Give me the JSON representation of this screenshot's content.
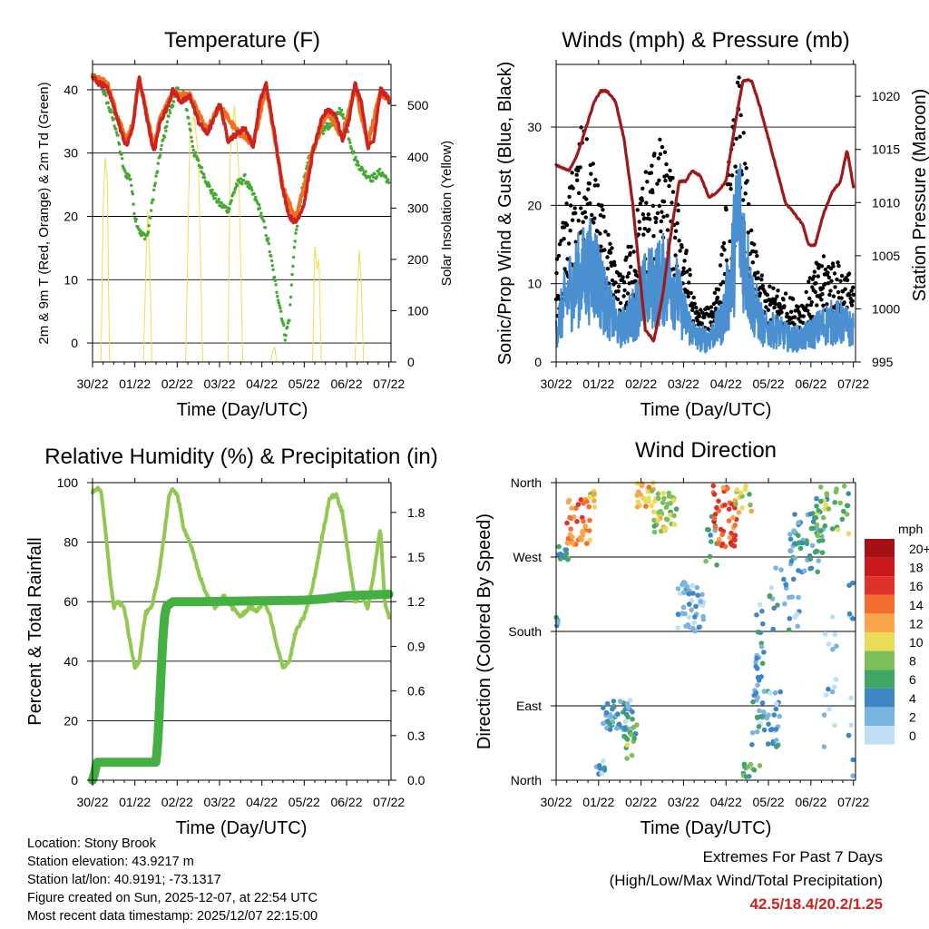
{
  "meta": {
    "location": "Location: Stony Brook",
    "elevation": "Station elevation: 43.9217 m",
    "latlon": "Station lat/lon: 40.9191; -73.1317",
    "created": "Figure created on Sun, 2025-12-07, at 22:54 UTC",
    "timestamp": "Most recent data timestamp: 2025/12/07 22:15:00"
  },
  "extremes": {
    "title": "Extremes For Past 7 Days",
    "subtitle": "(High/Low/Max Wind/Total Precipitation)",
    "values": "42.5/18.4/20.2/1.25"
  },
  "colors": {
    "temp2m": "#cc2222",
    "temp9m": "#f07020",
    "dewpoint": "#44aa33",
    "solar": "#f2dc50",
    "wind_sonic": "#4a90d0",
    "gust": "#000000",
    "pressure": "#a01818",
    "rh": "#90c850",
    "precip": "#44b044"
  },
  "chart_data": [
    {
      "type": "line",
      "title": "Temperature (F)",
      "xlabel": "Time (Day/UTC)",
      "ylabel": "2m & 9m T (Red, Orange) & 2m Td (Green)",
      "ylabel_right": "Solar Insolation (Yellow)",
      "x_ticks": [
        "30/22",
        "01/22",
        "02/22",
        "03/22",
        "04/22",
        "05/22",
        "06/22",
        "07/22"
      ],
      "xlim": [
        0,
        7.05
      ],
      "ylim": [
        -3,
        44
      ],
      "y_ticks": [
        "0",
        "10",
        "20",
        "30",
        "40"
      ],
      "ylim_right": [
        0,
        580
      ],
      "y_ticks_right": [
        "0",
        "100",
        "200",
        "300",
        "400",
        "500"
      ],
      "series": [
        {
          "name": "2m T",
          "x": [
            0,
            0.15,
            0.35,
            0.6,
            0.8,
            0.95,
            1.1,
            1.3,
            1.45,
            1.6,
            1.75,
            1.9,
            2.1,
            2.3,
            2.5,
            2.7,
            2.85,
            3.0,
            3.2,
            3.4,
            3.6,
            3.8,
            3.95,
            4.1,
            4.3,
            4.5,
            4.65,
            4.8,
            5.0,
            5.2,
            5.4,
            5.55,
            5.75,
            5.9,
            6.05,
            6.2,
            6.35,
            6.5,
            6.65,
            6.8,
            6.95,
            7.0
          ],
          "values": [
            42,
            41,
            40.5,
            35,
            31,
            34,
            42,
            35,
            30,
            35,
            37,
            40,
            38,
            39,
            35,
            33,
            35,
            38,
            32,
            33,
            34,
            31,
            38,
            41,
            33,
            24,
            20,
            19,
            22,
            30,
            35,
            37,
            36,
            32,
            35,
            41,
            38,
            31,
            32,
            40,
            39,
            38
          ]
        },
        {
          "name": "9m T",
          "x": [
            0,
            0.35,
            0.6,
            0.8,
            0.95,
            1.1,
            1.3,
            1.45,
            1.6,
            1.9,
            2.3,
            2.7,
            3.0,
            3.4,
            3.8,
            4.1,
            4.5,
            4.8,
            5.2,
            5.55,
            5.9,
            6.2,
            6.5,
            6.8,
            7.0
          ],
          "values": [
            42,
            41,
            35.5,
            32,
            34.5,
            42,
            35.5,
            31,
            35.5,
            39.5,
            39,
            33.5,
            37.5,
            33.5,
            31.5,
            40.5,
            24.5,
            19.5,
            30.5,
            36.5,
            32.5,
            40.5,
            31.5,
            39.5,
            38.5
          ]
        },
        {
          "name": "2m Td",
          "x": [
            0,
            0.2,
            0.4,
            0.55,
            0.75,
            0.9,
            1.0,
            1.15,
            1.3,
            1.45,
            1.6,
            1.8,
            2.0,
            2.2,
            2.4,
            2.6,
            2.8,
            3.0,
            3.2,
            3.4,
            3.6,
            3.75,
            3.9,
            4.0,
            4.15,
            4.3,
            4.45,
            4.55,
            4.65,
            4.75,
            4.85,
            4.95,
            5.1,
            5.3,
            5.5,
            5.7,
            5.85,
            6.0,
            6.2,
            6.4,
            6.6,
            6.8,
            6.95,
            7.0
          ],
          "values": [
            42,
            41,
            37,
            34,
            27,
            26,
            20,
            17,
            17,
            24,
            30,
            36,
            40,
            38,
            30,
            27,
            24,
            22,
            21,
            25,
            26,
            24,
            22,
            20,
            16,
            10,
            5,
            1,
            4,
            14,
            20,
            24,
            29,
            32,
            34,
            35,
            37,
            34,
            29,
            27,
            26,
            27,
            26,
            25
          ]
        },
        {
          "name": "Solar",
          "x": [
            0.2,
            0.25,
            0.3,
            0.35,
            0.4,
            1.2,
            1.25,
            1.3,
            1.35,
            1.4,
            2.2,
            2.3,
            2.4,
            2.5,
            2.6,
            3.2,
            3.25,
            3.35,
            3.45,
            3.55,
            4.2,
            4.25,
            4.3,
            4.35,
            5.2,
            5.25,
            5.3,
            5.35,
            5.4,
            6.2,
            6.25,
            6.3,
            6.35,
            6.4,
            6.5
          ],
          "values": [
            0,
            300,
            400,
            350,
            0,
            0,
            150,
            300,
            200,
            0,
            0,
            450,
            480,
            400,
            0,
            0,
            400,
            500,
            380,
            0,
            0,
            20,
            30,
            0,
            0,
            230,
            180,
            200,
            0,
            0,
            120,
            220,
            150,
            0,
            0
          ]
        }
      ]
    },
    {
      "type": "line",
      "title": "Winds (mph) & Pressure (mb)",
      "xlabel": "Time (Day/UTC)",
      "ylabel": "Sonic/Prop Wind & Gust (Blue, Black)",
      "ylabel_right": "Station Pressure (Maroon)",
      "x_ticks": [
        "30/22",
        "01/22",
        "02/22",
        "03/22",
        "04/22",
        "05/22",
        "06/22",
        "07/22"
      ],
      "xlim": [
        0,
        7.05
      ],
      "ylim": [
        0,
        38
      ],
      "y_ticks": [
        "0",
        "10",
        "20",
        "30"
      ],
      "ylim_right": [
        995,
        1023
      ],
      "y_ticks_right": [
        "995",
        "1000",
        "1005",
        "1010",
        "1015",
        "1020"
      ],
      "series": [
        {
          "name": "Sonic/Prop Wind",
          "x": [
            0,
            0.3,
            0.6,
            0.9,
            1.2,
            1.5,
            1.8,
            2.1,
            2.4,
            2.7,
            3.0,
            3.3,
            3.6,
            3.9,
            4.1,
            4.3,
            4.6,
            4.9,
            5.2,
            5.5,
            5.8,
            6.1,
            6.4,
            6.7,
            7.0
          ],
          "values": [
            4,
            9,
            11,
            12,
            7,
            4,
            6,
            9,
            10,
            11,
            6,
            3,
            3,
            5,
            10,
            19,
            8,
            4,
            4,
            3,
            3,
            4,
            5,
            5,
            4
          ]
        },
        {
          "name": "Gust",
          "x": [
            0,
            0.3,
            0.6,
            0.9,
            1.2,
            1.5,
            1.8,
            2.1,
            2.4,
            2.7,
            3.0,
            3.3,
            3.6,
            3.9,
            4.1,
            4.3,
            4.6,
            4.9,
            5.2,
            5.5,
            5.8,
            6.1,
            6.4,
            6.7,
            7.0
          ],
          "values": [
            9,
            16,
            22,
            18,
            12,
            8,
            12,
            18,
            21,
            18,
            12,
            5,
            5,
            10,
            20,
            27,
            12,
            7,
            7,
            6,
            6,
            9,
            10,
            9,
            8
          ]
        },
        {
          "name": "Station Pressure",
          "x": [
            0,
            0.3,
            0.5,
            0.7,
            0.9,
            1.05,
            1.2,
            1.4,
            1.6,
            1.8,
            1.95,
            2.1,
            2.3,
            2.5,
            2.7,
            2.9,
            3.05,
            3.2,
            3.4,
            3.6,
            3.8,
            4.0,
            4.2,
            4.4,
            4.6,
            4.8,
            5.0,
            5.2,
            5.4,
            5.6,
            5.8,
            5.95,
            6.1,
            6.3,
            6.5,
            6.7,
            6.85,
            7.0
          ],
          "values": [
            1013.5,
            1013,
            1014.5,
            1017,
            1019.5,
            1020.5,
            1020.5,
            1019.5,
            1016,
            1010,
            1004,
            998,
            997,
            1001,
            1007,
            1012,
            1012,
            1013,
            1012.5,
            1010.5,
            1011,
            1012,
            1017,
            1021.5,
            1021.5,
            1019,
            1016,
            1013,
            1010,
            1009,
            1008,
            1006,
            1006,
            1009,
            1011,
            1012,
            1015,
            1011.5
          ]
        }
      ]
    },
    {
      "type": "line",
      "title": "Relative Humidity (%) & Precipitation (in)",
      "xlabel": "Time (Day/UTC)",
      "ylabel": "Percent & Total Rainfall",
      "x_ticks": [
        "30/22",
        "01/22",
        "02/22",
        "03/22",
        "04/22",
        "05/22",
        "06/22",
        "07/22"
      ],
      "xlim": [
        0,
        7.05
      ],
      "ylim": [
        0,
        100
      ],
      "y_ticks": [
        "0",
        "20",
        "40",
        "60",
        "80",
        "100"
      ],
      "ylim_right": [
        0,
        2.0
      ],
      "y_ticks_right": [
        "0.0",
        "0.3",
        "0.6",
        "0.9",
        "1.2",
        "1.5",
        "1.8"
      ],
      "series": [
        {
          "name": "Relative Humidity",
          "x": [
            0,
            0.1,
            0.2,
            0.3,
            0.4,
            0.5,
            0.6,
            0.75,
            0.9,
            1.0,
            1.1,
            1.25,
            1.4,
            1.55,
            1.7,
            1.8,
            1.9,
            2.0,
            2.15,
            2.3,
            2.5,
            2.7,
            2.9,
            3.1,
            3.3,
            3.5,
            3.7,
            3.9,
            4.05,
            4.2,
            4.35,
            4.5,
            4.65,
            4.8,
            5.0,
            5.2,
            5.4,
            5.6,
            5.75,
            5.9,
            6.05,
            6.2,
            6.35,
            6.5,
            6.65,
            6.8,
            6.9,
            7.0
          ],
          "values": [
            97,
            98,
            97,
            85,
            70,
            58,
            60,
            58,
            45,
            38,
            40,
            56,
            58,
            68,
            83,
            95,
            98,
            96,
            85,
            80,
            70,
            62,
            58,
            62,
            58,
            55,
            58,
            57,
            60,
            55,
            45,
            38,
            40,
            50,
            55,
            65,
            80,
            95,
            96,
            90,
            75,
            60,
            62,
            58,
            70,
            85,
            60,
            55
          ]
        },
        {
          "name": "Total Precipitation",
          "x": [
            0,
            0.05,
            0.1,
            1.3,
            1.5,
            1.55,
            1.6,
            1.65,
            1.7,
            1.75,
            1.8,
            1.85,
            1.9,
            2.0,
            2.5,
            5.0,
            5.5,
            6.0,
            7.0
          ],
          "values": [
            0,
            0.05,
            0.12,
            0.12,
            0.12,
            0.3,
            0.6,
            0.9,
            1.1,
            1.17,
            1.18,
            1.19,
            1.2,
            1.2,
            1.2,
            1.21,
            1.22,
            1.24,
            1.25
          ]
        }
      ]
    },
    {
      "type": "scatter",
      "title": "Wind Direction",
      "xlabel": "Time (Day/UTC)",
      "ylabel": "Direction (Colored By Speed)",
      "x_ticks": [
        "30/22",
        "01/22",
        "02/22",
        "03/22",
        "04/22",
        "05/22",
        "06/22",
        "07/22"
      ],
      "xlim": [
        0,
        7.05
      ],
      "y_ticks": [
        "North",
        "West",
        "South",
        "East",
        "North"
      ],
      "ylim": [
        0,
        360
      ],
      "legend": {
        "title": "mph",
        "labels": [
          "20+",
          "18",
          "16",
          "14",
          "12",
          "10",
          "8",
          "6",
          "4",
          "2",
          "0"
        ],
        "colors": [
          "#a50f15",
          "#cb181d",
          "#e0302a",
          "#f46d2e",
          "#fba54a",
          "#eadc58",
          "#7cbf58",
          "#3fa663",
          "#3f86c4",
          "#7ab4e0",
          "#bfe0f4"
        ],
        "placement": "right"
      },
      "clusters": [
        {
          "x0": 0.0,
          "x1": 0.05,
          "d0": 180,
          "d1": 200,
          "s": 4,
          "n": 6
        },
        {
          "x0": 0.05,
          "x1": 0.3,
          "d0": 265,
          "d1": 285,
          "s": 6,
          "n": 14
        },
        {
          "x0": 0.25,
          "x1": 0.8,
          "d0": 285,
          "d1": 340,
          "s": 13,
          "n": 40
        },
        {
          "x0": 0.75,
          "x1": 0.95,
          "d0": 330,
          "d1": 355,
          "s": 10,
          "n": 10
        },
        {
          "x0": 0.95,
          "x1": 1.15,
          "d0": 0,
          "d1": 25,
          "s": 3,
          "n": 8
        },
        {
          "x0": 1.1,
          "x1": 1.8,
          "d0": 60,
          "d1": 100,
          "s": 3,
          "n": 50
        },
        {
          "x0": 1.6,
          "x1": 1.9,
          "d0": 20,
          "d1": 70,
          "s": 7,
          "n": 18
        },
        {
          "x0": 1.9,
          "x1": 2.3,
          "d0": 330,
          "d1": 360,
          "s": 11,
          "n": 22
        },
        {
          "x0": 2.3,
          "x1": 2.85,
          "d0": 300,
          "d1": 350,
          "s": 9,
          "n": 40
        },
        {
          "x0": 2.85,
          "x1": 3.5,
          "d0": 180,
          "d1": 240,
          "s": 2,
          "n": 45
        },
        {
          "x0": 3.5,
          "x1": 3.8,
          "d0": 260,
          "d1": 330,
          "s": 5,
          "n": 12
        },
        {
          "x0": 3.7,
          "x1": 4.25,
          "d0": 280,
          "d1": 360,
          "s": 15,
          "n": 45
        },
        {
          "x0": 4.2,
          "x1": 4.6,
          "d0": 320,
          "d1": 360,
          "s": 9,
          "n": 14
        },
        {
          "x0": 4.4,
          "x1": 4.8,
          "d0": 0,
          "d1": 20,
          "s": 6,
          "n": 12
        },
        {
          "x0": 4.6,
          "x1": 5.3,
          "d0": 40,
          "d1": 110,
          "s": 3,
          "n": 45
        },
        {
          "x0": 4.7,
          "x1": 4.9,
          "d0": 110,
          "d1": 230,
          "s": 3,
          "n": 20
        },
        {
          "x0": 5.0,
          "x1": 5.8,
          "d0": 180,
          "d1": 260,
          "s": 3,
          "n": 25
        },
        {
          "x0": 5.5,
          "x1": 6.3,
          "d0": 250,
          "d1": 330,
          "s": 4,
          "n": 55
        },
        {
          "x0": 6.1,
          "x1": 6.9,
          "d0": 290,
          "d1": 360,
          "s": 7,
          "n": 35
        },
        {
          "x0": 6.3,
          "x1": 6.6,
          "d0": 40,
          "d1": 200,
          "s": 1,
          "n": 15
        },
        {
          "x0": 6.85,
          "x1": 7.0,
          "d0": 0,
          "d1": 100,
          "s": 2,
          "n": 6
        },
        {
          "x0": 6.9,
          "x1": 7.0,
          "d0": 180,
          "d1": 240,
          "s": 3,
          "n": 6
        }
      ]
    }
  ]
}
